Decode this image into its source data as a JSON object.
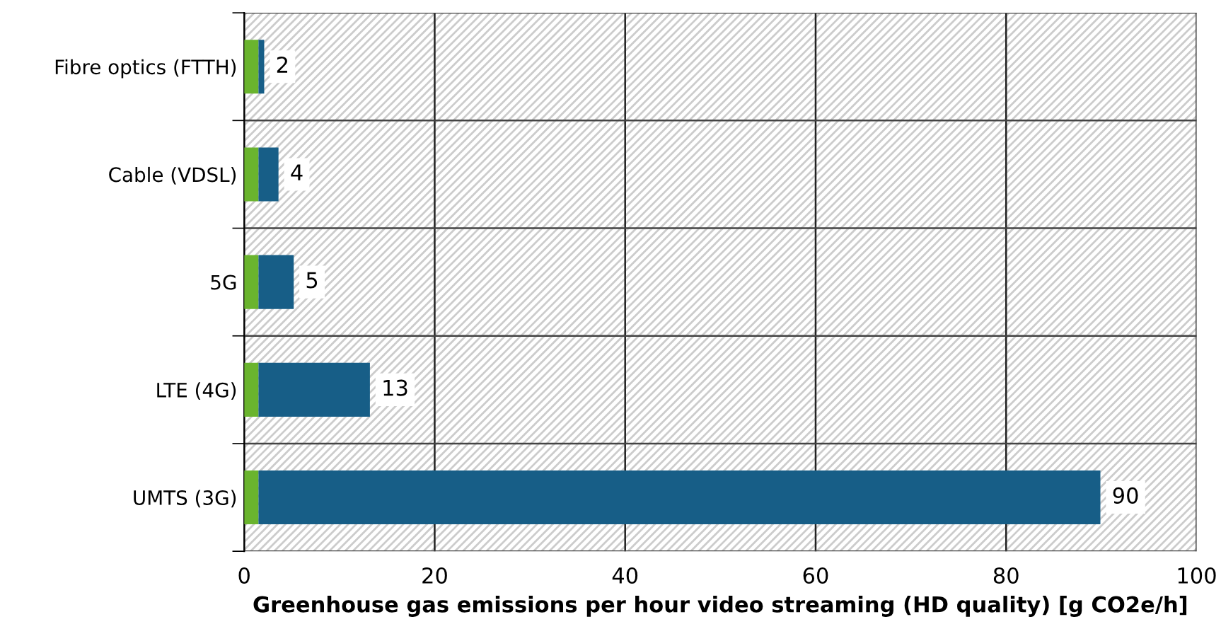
{
  "chart_data": {
    "type": "bar",
    "orientation": "horizontal",
    "stacked": true,
    "xlabel": "Greenhouse gas emissions per hour video streaming (HD quality) [g CO2e/h]",
    "categories": [
      "Fibre optics (FTTH)",
      "Cable (VDSL)",
      "5G",
      "LTE (4G)",
      "UMTS (3G)"
    ],
    "series": [
      {
        "color": "#6ab42e",
        "values": [
          1.5,
          1.5,
          1.5,
          1.5,
          1.5
        ]
      },
      {
        "color": "#175e87",
        "values": [
          0.6,
          2.1,
          3.7,
          11.7,
          88.4
        ]
      }
    ],
    "totals": [
      "2",
      "4",
      "5",
      "13",
      "90"
    ],
    "xlim": [
      0,
      100
    ],
    "xticks": [
      0,
      20,
      40,
      60,
      80,
      100
    ],
    "grid": true
  }
}
